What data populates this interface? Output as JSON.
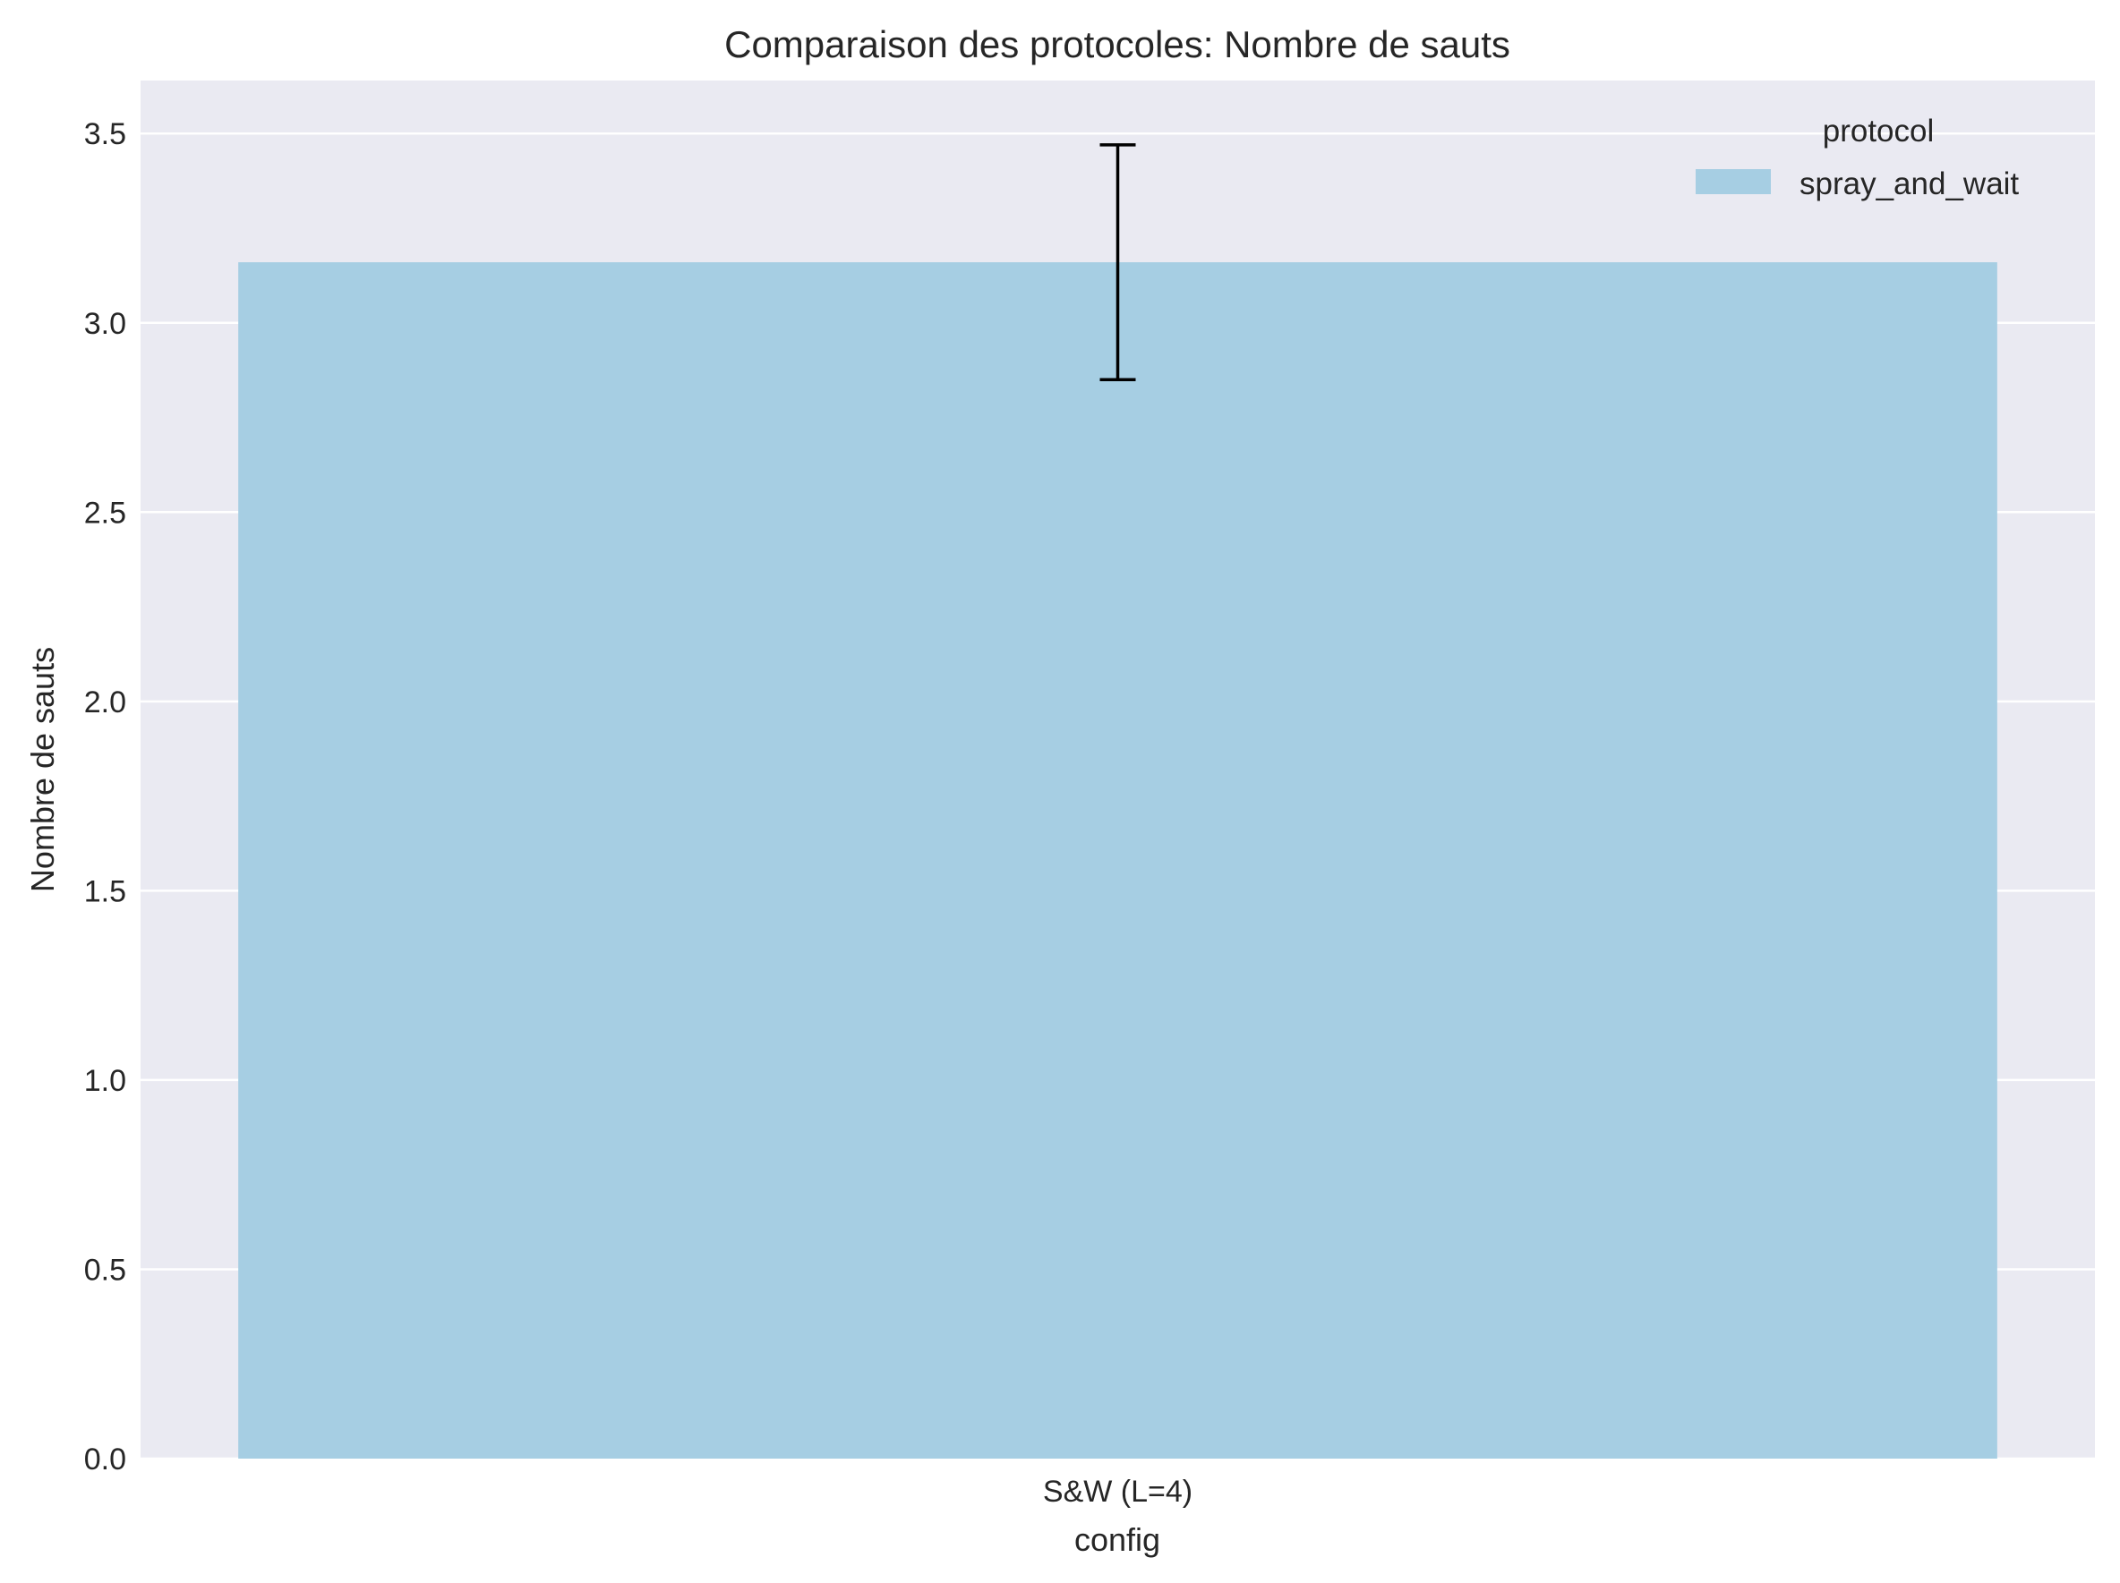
{
  "chart_data": {
    "type": "bar",
    "title": "Comparaison des protocoles: Nombre de sauts",
    "xlabel": "config",
    "ylabel": "Nombre de sauts",
    "categories": [
      "S&W (L=4)"
    ],
    "series": [
      {
        "name": "spray_and_wait",
        "values": [
          3.16
        ],
        "error": [
          0.31
        ],
        "color": "#a6cee3"
      }
    ],
    "ylim": [
      0,
      3.64
    ],
    "yticks": [
      0.0,
      0.5,
      1.0,
      1.5,
      2.0,
      2.5,
      3.0,
      3.5
    ],
    "ytick_labels": [
      "0.0",
      "0.5",
      "1.0",
      "1.5",
      "2.0",
      "2.5",
      "3.0",
      "3.5"
    ],
    "legend": {
      "title": "protocol",
      "placement": "top-right"
    },
    "grid": true,
    "background": "#eaeaf2",
    "grid_color": "#ffffff"
  }
}
